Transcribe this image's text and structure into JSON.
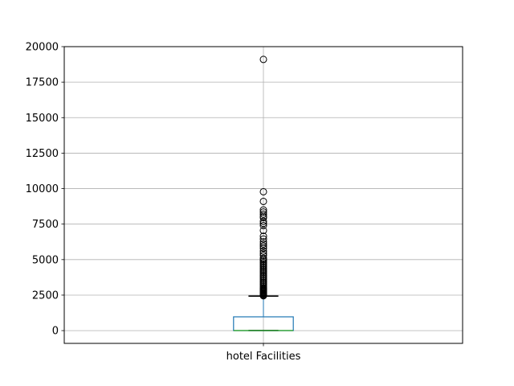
{
  "chart_data": {
    "type": "box",
    "categories": [
      "hotel Facilities"
    ],
    "ylim": [
      -900,
      20000
    ],
    "yticks": [
      0,
      2500,
      5000,
      7500,
      10000,
      12500,
      15000,
      17500,
      20000
    ],
    "grid": true,
    "series": [
      {
        "name": "hotel Facilities",
        "stats": {
          "lower_whisker": 0,
          "q1": 0,
          "median": 0,
          "q3": 970,
          "upper_whisker": 2430
        },
        "outliers": [
          19100,
          9780,
          9100,
          8500,
          8350,
          8200,
          8050,
          7950,
          7700,
          7550,
          7400,
          7050,
          6650,
          6450,
          6250,
          6100,
          5950,
          5800,
          5600,
          5450,
          5300,
          5100,
          5000,
          4900,
          4800,
          4700,
          4600,
          4500,
          4400,
          4300,
          4200,
          4100,
          4000,
          3900,
          3800,
          3700,
          3600,
          3500,
          3400,
          3300,
          3200,
          3100,
          3000,
          2950,
          2900,
          2850,
          2800,
          2750,
          2700,
          2650,
          2600,
          2550,
          2500,
          2450
        ]
      }
    ],
    "colors": {
      "box": "#1f77b4",
      "median": "#2ca02c",
      "whisker": "#000000",
      "grid": "#b0b0b0",
      "axes": "#000000"
    }
  }
}
